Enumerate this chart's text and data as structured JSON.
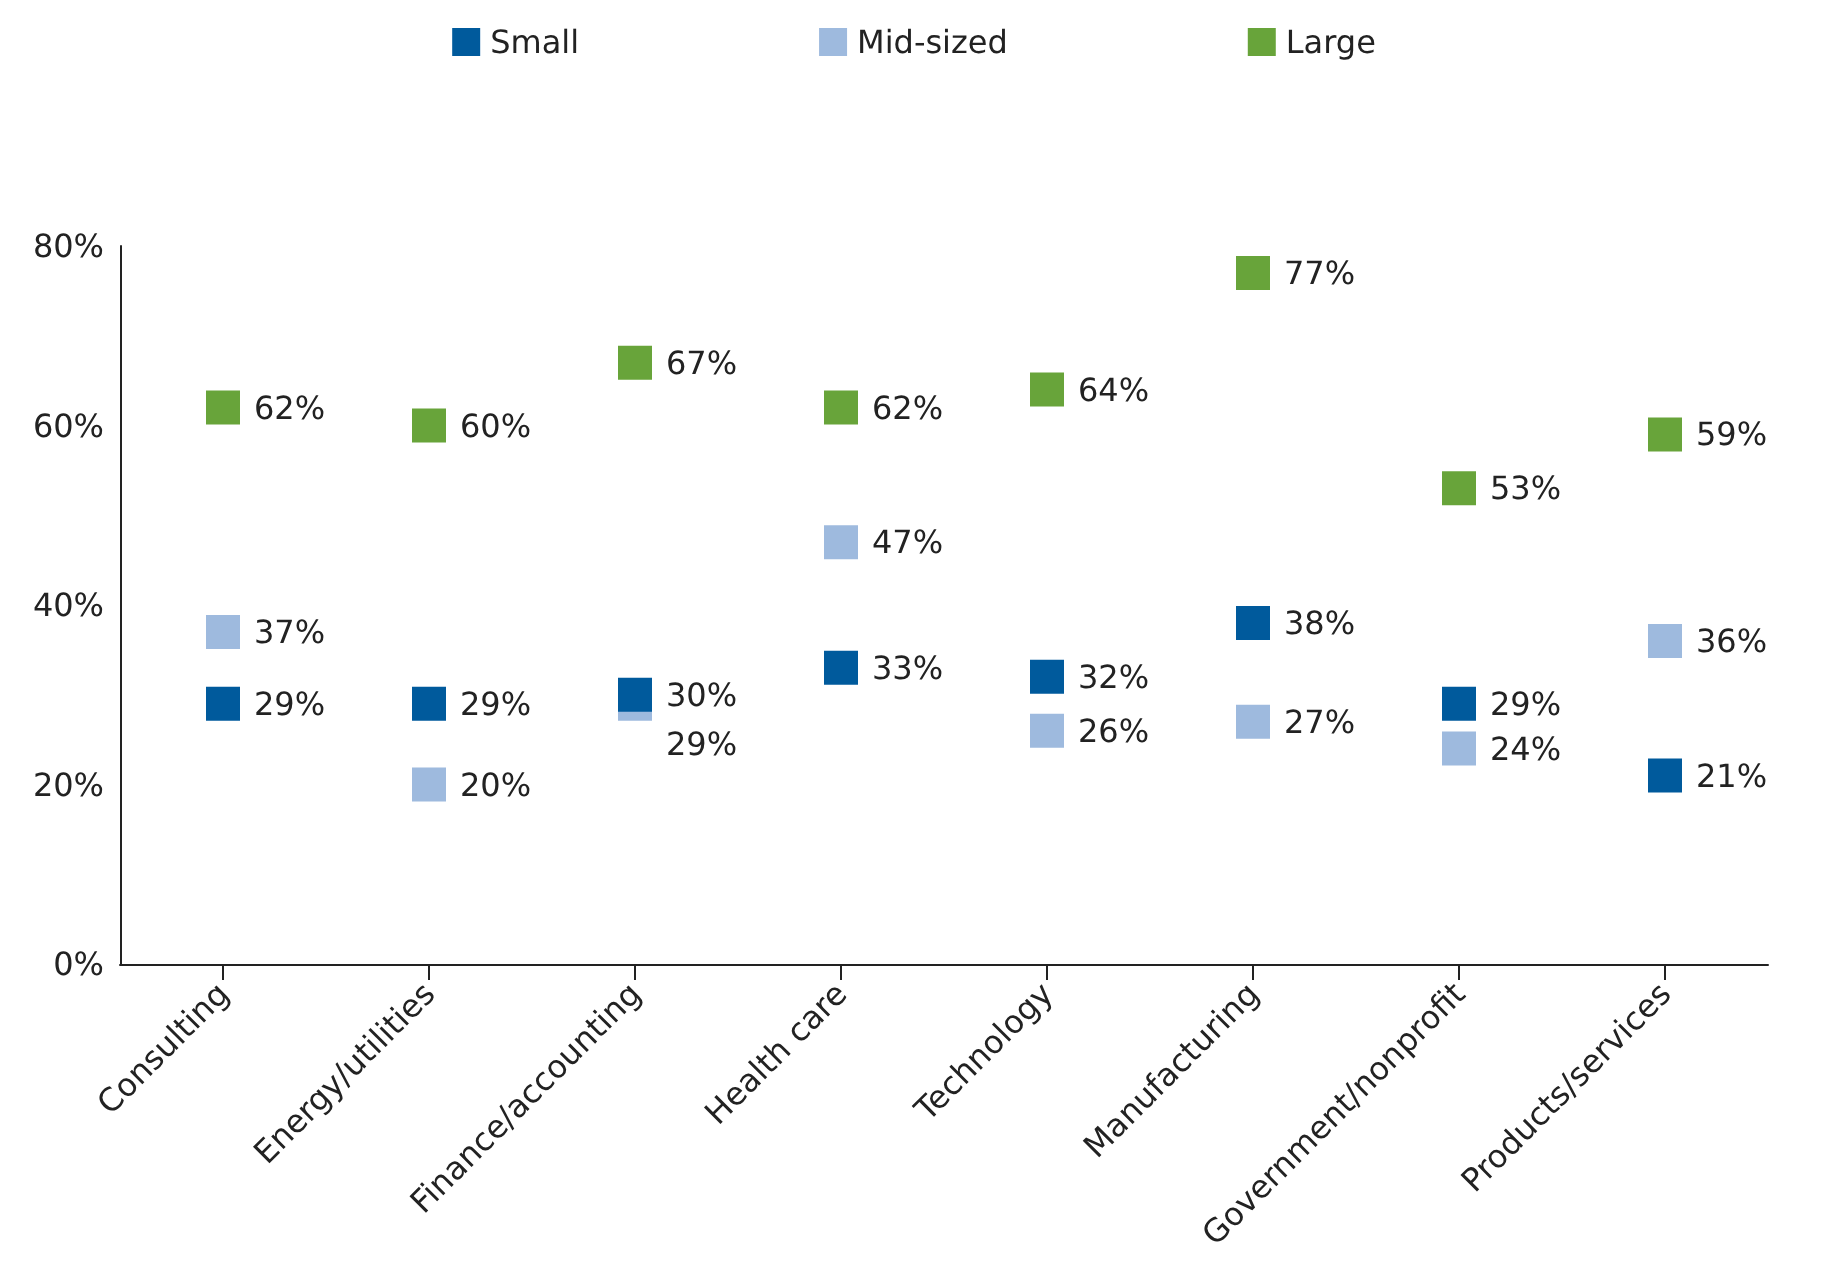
{
  "chart_data": {
    "type": "scatter",
    "categories": [
      "Consulting",
      "Energy/utilities",
      "Finance/accounting",
      "Health care",
      "Technology",
      "Manufacturing",
      "Government/nonprofit",
      "Products/services"
    ],
    "series": [
      {
        "name": "Small",
        "color": "#005a9c",
        "values": [
          29,
          29,
          30,
          33,
          32,
          38,
          29,
          21
        ],
        "value_labels": [
          "29%",
          "29%",
          "30%",
          "33%",
          "32%",
          "38%",
          "29%",
          "21%"
        ]
      },
      {
        "name": "Mid-sized",
        "color": "#9ebade",
        "values": [
          37,
          20,
          29,
          47,
          26,
          27,
          24,
          36
        ],
        "value_labels": [
          "37%",
          "20%",
          "29%",
          "47%",
          "26%",
          "27%",
          "24%",
          "36%"
        ]
      },
      {
        "name": "Large",
        "color": "#68a43a",
        "values": [
          62,
          60,
          67,
          62,
          64,
          77,
          53,
          59
        ],
        "value_labels": [
          "62%",
          "60%",
          "67%",
          "62%",
          "64%",
          "77%",
          "53%",
          "59%"
        ]
      }
    ],
    "ylim": [
      0,
      80
    ],
    "yticks": [
      {
        "value": 0,
        "label": "0%"
      },
      {
        "value": 20,
        "label": "20%"
      },
      {
        "value": 40,
        "label": "40%"
      },
      {
        "value": 60,
        "label": "60%"
      },
      {
        "value": 80,
        "label": "80%"
      }
    ],
    "grid": false,
    "legend": "top",
    "marker": "square"
  }
}
